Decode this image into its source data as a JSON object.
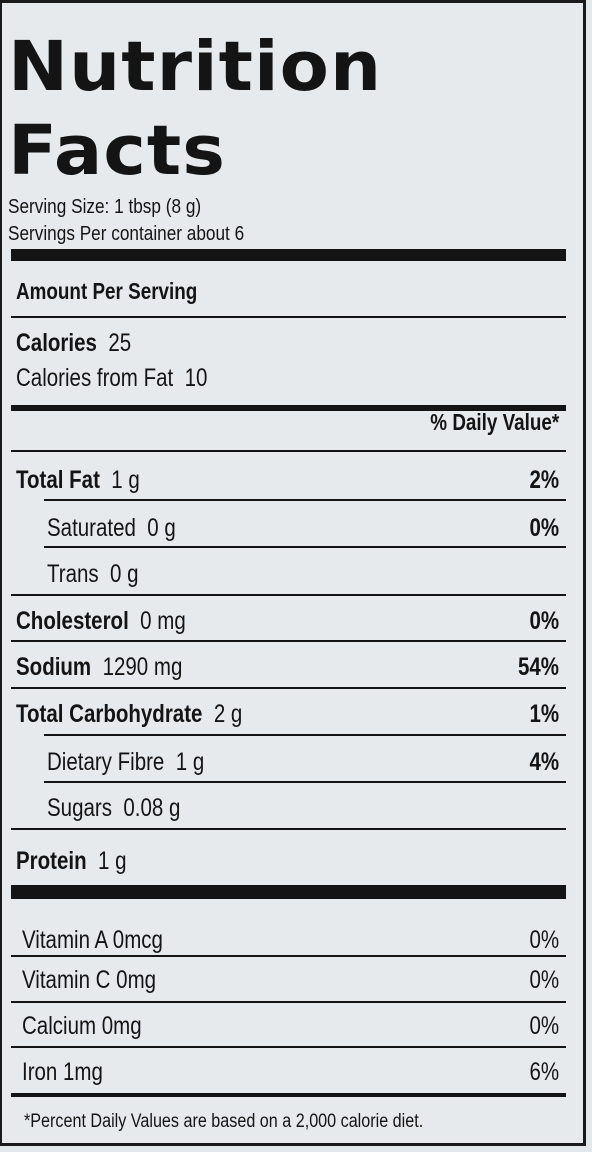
{
  "title_line1": "Nutrition",
  "title_line2": "Facts",
  "serving_size": "Serving Size: 1 tbsp (8 g)",
  "servings_per_container": "Servings Per container about 6",
  "amount_per_serving": "Amount Per Serving",
  "calories": {
    "label": "Calories",
    "value": "25"
  },
  "calories_from_fat": {
    "label": "Calories from Fat",
    "value": "10"
  },
  "daily_value_header": "% Daily Value*",
  "nutrients": [
    {
      "label": "Total Fat",
      "amount": "1 g",
      "pct": "2%"
    },
    {
      "label": "Saturated",
      "amount": "0 g",
      "pct": "0%"
    },
    {
      "label": "Trans",
      "amount": "0 g",
      "pct": ""
    },
    {
      "label": "Cholesterol",
      "amount": "0 mg",
      "pct": "0%"
    },
    {
      "label": "Sodium",
      "amount": "1290 mg",
      "pct": "54%"
    },
    {
      "label": "Total Carbohydrate",
      "amount": "2 g",
      "pct": "1%"
    },
    {
      "label": "Dietary Fibre",
      "amount": "1 g",
      "pct": "4%"
    },
    {
      "label": "Sugars",
      "amount": "0.08 g",
      "pct": ""
    },
    {
      "label": "Protein",
      "amount": "1 g",
      "pct": ""
    }
  ],
  "vitamins": [
    {
      "label": "Vitamin A 0mcg",
      "pct": "0%"
    },
    {
      "label": "Vitamin  C 0mg",
      "pct": "0%"
    },
    {
      "label": "Calcium 0mg",
      "pct": "0%"
    },
    {
      "label": "Iron 1mg",
      "pct": "6%"
    }
  ],
  "footnote": "*Percent Daily Values are based on a 2,000 calorie diet."
}
